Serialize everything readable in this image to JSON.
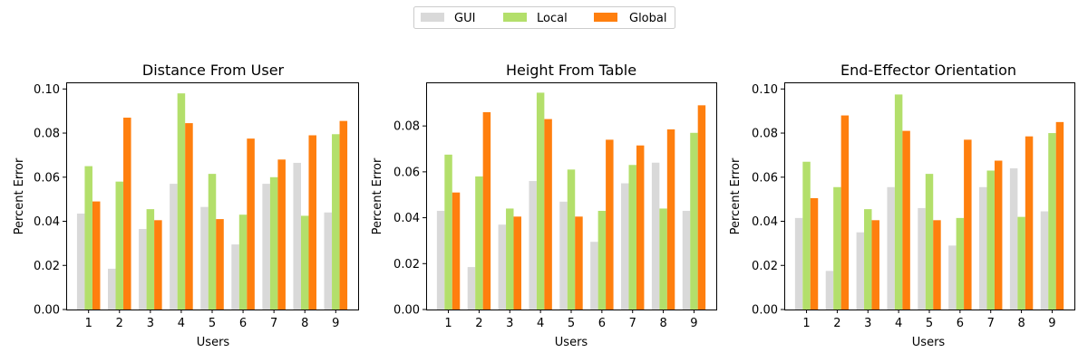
{
  "colors": {
    "GUI": "#d9d9d9",
    "Local": "#b3df6b",
    "Global": "#ff7f0e"
  },
  "legend": [
    {
      "name": "GUI",
      "color": "#d9d9d9"
    },
    {
      "name": "Local",
      "color": "#b3df6b"
    },
    {
      "name": "Global",
      "color": "#ff7f0e"
    }
  ],
  "chart_data": [
    {
      "type": "bar",
      "title": "Distance From User",
      "xlabel": "Users",
      "ylabel": "Percent Error",
      "categories": [
        "1",
        "2",
        "3",
        "4",
        "5",
        "6",
        "7",
        "8",
        "9"
      ],
      "ylim": [
        0,
        0.103
      ],
      "yticks": [
        0.0,
        0.02,
        0.04,
        0.06,
        0.08,
        0.1
      ],
      "ytick_labels": [
        "0.00",
        "0.02",
        "0.04",
        "0.06",
        "0.08",
        "0.10"
      ],
      "series": [
        {
          "name": "GUI",
          "values": [
            0.0435,
            0.0185,
            0.0365,
            0.057,
            0.0465,
            0.0295,
            0.057,
            0.0665,
            0.044
          ]
        },
        {
          "name": "Local",
          "values": [
            0.065,
            0.058,
            0.0455,
            0.098,
            0.0615,
            0.043,
            0.06,
            0.0425,
            0.0795
          ]
        },
        {
          "name": "Global",
          "values": [
            0.049,
            0.087,
            0.0405,
            0.0845,
            0.041,
            0.0775,
            0.068,
            0.079,
            0.0855
          ]
        }
      ]
    },
    {
      "type": "bar",
      "title": "Height From Table",
      "xlabel": "Users",
      "ylabel": "Percent Error",
      "categories": [
        "1",
        "2",
        "3",
        "4",
        "5",
        "6",
        "7",
        "8",
        "9"
      ],
      "ylim": [
        0,
        0.099
      ],
      "yticks": [
        0.0,
        0.02,
        0.04,
        0.06,
        0.08
      ],
      "ytick_labels": [
        "0.00",
        "0.02",
        "0.04",
        "0.06",
        "0.08"
      ],
      "series": [
        {
          "name": "GUI",
          "values": [
            0.043,
            0.0185,
            0.037,
            0.056,
            0.047,
            0.0295,
            0.055,
            0.064,
            0.043
          ]
        },
        {
          "name": "Local",
          "values": [
            0.0675,
            0.058,
            0.044,
            0.0945,
            0.061,
            0.043,
            0.063,
            0.044,
            0.077
          ]
        },
        {
          "name": "Global",
          "values": [
            0.051,
            0.086,
            0.0405,
            0.083,
            0.0405,
            0.074,
            0.0715,
            0.0785,
            0.089
          ]
        }
      ]
    },
    {
      "type": "bar",
      "title": "End-Effector Orientation",
      "xlabel": "Users",
      "ylabel": "Percent Error",
      "categories": [
        "1",
        "2",
        "3",
        "4",
        "5",
        "6",
        "7",
        "8",
        "9"
      ],
      "ylim": [
        0,
        0.103
      ],
      "yticks": [
        0.0,
        0.02,
        0.04,
        0.06,
        0.08,
        0.1
      ],
      "ytick_labels": [
        "0.00",
        "0.02",
        "0.04",
        "0.06",
        "0.08",
        "0.10"
      ],
      "series": [
        {
          "name": "GUI",
          "values": [
            0.0415,
            0.0175,
            0.035,
            0.0555,
            0.046,
            0.029,
            0.0555,
            0.064,
            0.0445
          ]
        },
        {
          "name": "Local",
          "values": [
            0.067,
            0.0555,
            0.0455,
            0.0975,
            0.0615,
            0.0415,
            0.063,
            0.042,
            0.08
          ]
        },
        {
          "name": "Global",
          "values": [
            0.0505,
            0.088,
            0.0405,
            0.081,
            0.0405,
            0.077,
            0.0675,
            0.0785,
            0.085
          ]
        }
      ]
    }
  ]
}
